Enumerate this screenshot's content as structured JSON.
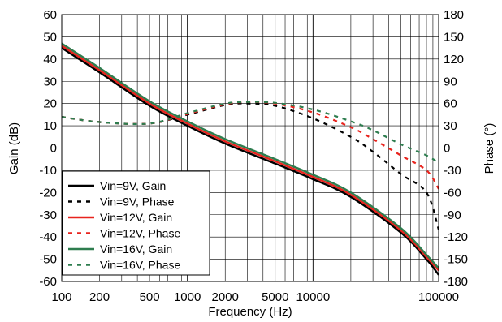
{
  "chart_data": {
    "type": "line",
    "title": "",
    "xlabel": "Frequency (Hz)",
    "ylabel": "Gain (dB)",
    "y2label": "Phase (°)",
    "xscale": "log",
    "xlim": [
      100,
      100000
    ],
    "ylim": [
      -60,
      60
    ],
    "y2lim": [
      -180,
      180
    ],
    "grid": true,
    "legend_position": "bottom-left",
    "x_tick_labels": [
      {
        "value": 100,
        "label": "100"
      },
      {
        "value": 200,
        "label": "200"
      },
      {
        "value": 500,
        "label": "500"
      },
      {
        "value": 1000,
        "label": "1000"
      },
      {
        "value": 2000,
        "label": "2000"
      },
      {
        "value": 5000,
        "label": "5000"
      },
      {
        "value": 10000,
        "label": "10000"
      },
      {
        "value": 100000,
        "label": "100000"
      }
    ],
    "y_tick_labels": [
      "60",
      "50",
      "40",
      "30",
      "20",
      "10",
      "0",
      "-10",
      "-20",
      "-30",
      "-40",
      "-50",
      "-60"
    ],
    "y2_tick_labels": [
      "180",
      "150",
      "120",
      "90",
      "60",
      "30",
      "0",
      "-30",
      "-60",
      "-90",
      "-120",
      "-150",
      "-180"
    ],
    "colors": {
      "vin9": "#000000",
      "vin12": "#e8231d",
      "vin16": "#2e7d4f"
    },
    "series": [
      {
        "name": "Vin=9V, Gain",
        "axis": "left",
        "color": "#000000",
        "style": "solid",
        "x": [
          100,
          200,
          500,
          1000,
          2000,
          5000,
          10000,
          20000,
          50000,
          80000,
          100000
        ],
        "y": [
          45,
          34,
          19,
          10,
          2,
          -7,
          -14,
          -22,
          -38,
          -50,
          -57
        ]
      },
      {
        "name": "Vin=9V, Phase",
        "axis": "right",
        "color": "#000000",
        "style": "dashed",
        "x": [
          100,
          200,
          500,
          1000,
          2000,
          3000,
          5000,
          10000,
          20000,
          30000,
          50000,
          80000,
          100000
        ],
        "y": [
          42,
          35,
          33,
          45,
          58,
          60,
          57,
          40,
          15,
          -5,
          -35,
          -60,
          -110
        ]
      },
      {
        "name": "Vin=12V, Gain",
        "axis": "left",
        "color": "#e8231d",
        "style": "solid",
        "x": [
          100,
          200,
          500,
          1000,
          2000,
          5000,
          10000,
          20000,
          50000,
          80000,
          100000
        ],
        "y": [
          46,
          35,
          20,
          11,
          3,
          -6,
          -13,
          -21,
          -37,
          -49,
          -55
        ]
      },
      {
        "name": "Vin=12V, Phase",
        "axis": "right",
        "color": "#e8231d",
        "style": "dashed",
        "x": [
          100,
          200,
          500,
          1000,
          2000,
          3000,
          5000,
          10000,
          20000,
          30000,
          50000,
          80000,
          100000
        ],
        "y": [
          42,
          35,
          33,
          46,
          59,
          62,
          60,
          48,
          28,
          12,
          -10,
          -30,
          -55
        ]
      },
      {
        "name": "Vin=16V, Gain",
        "axis": "left",
        "color": "#2e7d4f",
        "style": "solid",
        "x": [
          100,
          200,
          500,
          1000,
          2000,
          5000,
          10000,
          20000,
          50000,
          80000,
          100000
        ],
        "y": [
          47,
          36,
          21,
          12,
          4,
          -5,
          -12,
          -20,
          -36,
          -48,
          -54
        ]
      },
      {
        "name": "Vin=16V, Phase",
        "axis": "right",
        "color": "#2e7d4f",
        "style": "dashed",
        "x": [
          100,
          200,
          500,
          1000,
          2000,
          3000,
          5000,
          10000,
          20000,
          30000,
          50000,
          80000,
          100000
        ],
        "y": [
          42,
          35,
          33,
          47,
          60,
          62,
          61,
          52,
          36,
          24,
          5,
          -10,
          -20
        ]
      }
    ]
  }
}
